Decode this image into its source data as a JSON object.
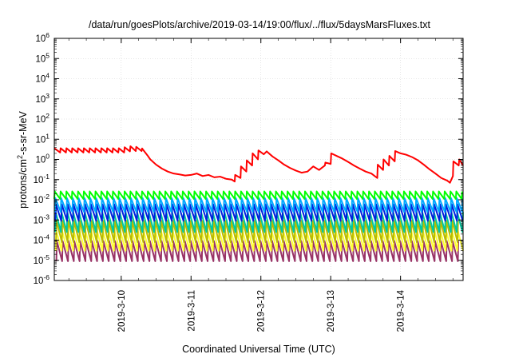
{
  "chart_data": {
    "type": "line",
    "title": "/data/run/goesPlots/archive/2019-03-14/19:00/flux/../flux/5daysMarsFluxes.txt",
    "xlabel": "Coordinated Universal Time (UTC)",
    "ylabel": {
      "base": "protons/cm",
      "sup": "2",
      "rest": "-s-sr-MeV"
    },
    "x_range": [
      "2019-03-09T01:00",
      "2019-03-14T21:30"
    ],
    "x_ticks": [
      {
        "at": "2019-03-10T00:00",
        "label": "2019-3-10"
      },
      {
        "at": "2019-03-11T00:00",
        "label": "2019-3-11"
      },
      {
        "at": "2019-03-12T00:00",
        "label": "2019-3-12"
      },
      {
        "at": "2019-03-13T00:00",
        "label": "2019-3-13"
      },
      {
        "at": "2019-03-14T00:00",
        "label": "2019-3-14"
      }
    ],
    "y_scale": "log",
    "ylim": [
      1e-06,
      1000000.0
    ],
    "y_ticks": [
      {
        "value": 1e-06,
        "base": "10",
        "exp": "-6"
      },
      {
        "value": 1e-05,
        "base": "10",
        "exp": "-5"
      },
      {
        "value": 0.0001,
        "base": "10",
        "exp": "-4"
      },
      {
        "value": 0.001,
        "base": "10",
        "exp": "-3"
      },
      {
        "value": 0.01,
        "base": "10",
        "exp": "-2"
      },
      {
        "value": 0.1,
        "base": "10",
        "exp": "-1"
      },
      {
        "value": 1,
        "base": "10",
        "exp": "0"
      },
      {
        "value": 10,
        "base": "10",
        "exp": "1"
      },
      {
        "value": 100,
        "base": "10",
        "exp": "2"
      },
      {
        "value": 1000,
        "base": "10",
        "exp": "3"
      },
      {
        "value": 10000,
        "base": "10",
        "exp": "4"
      },
      {
        "value": 100000,
        "base": "10",
        "exp": "5"
      },
      {
        "value": 1000000,
        "base": "10",
        "exp": "6"
      }
    ],
    "grid": true,
    "series": [
      {
        "color": "#ff0000",
        "x": [
          "2019-03-09T01:00",
          "2019-03-09T03:00",
          "2019-03-09T03:10",
          "2019-03-09T05:00",
          "2019-03-09T05:10",
          "2019-03-09T07:00",
          "2019-03-09T07:10",
          "2019-03-09T09:00",
          "2019-03-09T09:10",
          "2019-03-09T11:00",
          "2019-03-09T11:10",
          "2019-03-09T13:00",
          "2019-03-09T13:10",
          "2019-03-09T15:00",
          "2019-03-09T15:10",
          "2019-03-09T17:00",
          "2019-03-09T17:10",
          "2019-03-09T19:00",
          "2019-03-09T19:10",
          "2019-03-09T21:00",
          "2019-03-09T21:10",
          "2019-03-09T23:00",
          "2019-03-09T23:10",
          "2019-03-10T01:00",
          "2019-03-10T01:10",
          "2019-03-10T03:00",
          "2019-03-10T03:10",
          "2019-03-10T05:00",
          "2019-03-10T05:10",
          "2019-03-10T07:00",
          "2019-03-10T07:10",
          "2019-03-10T09:00",
          "2019-03-10T10:00",
          "2019-03-10T12:00",
          "2019-03-10T14:00",
          "2019-03-10T16:00",
          "2019-03-10T18:00",
          "2019-03-10T20:00",
          "2019-03-10T22:00",
          "2019-03-11T00:00",
          "2019-03-11T02:00",
          "2019-03-11T04:00",
          "2019-03-11T06:00",
          "2019-03-11T08:00",
          "2019-03-11T10:00",
          "2019-03-11T12:00",
          "2019-03-11T14:00",
          "2019-03-11T15:00",
          "2019-03-11T15:10",
          "2019-03-11T17:00",
          "2019-03-11T17:10",
          "2019-03-11T19:00",
          "2019-03-11T19:10",
          "2019-03-11T21:00",
          "2019-03-11T21:10",
          "2019-03-11T23:00",
          "2019-03-11T23:10",
          "2019-03-12T01:00",
          "2019-03-12T02:00",
          "2019-03-12T04:00",
          "2019-03-12T06:00",
          "2019-03-12T08:00",
          "2019-03-12T10:00",
          "2019-03-12T12:00",
          "2019-03-12T14:00",
          "2019-03-12T16:00",
          "2019-03-12T18:00",
          "2019-03-12T20:00",
          "2019-03-12T22:00",
          "2019-03-12T22:10",
          "2019-03-13T00:00",
          "2019-03-13T00:10",
          "2019-03-13T02:00",
          "2019-03-13T04:00",
          "2019-03-13T06:00",
          "2019-03-13T08:00",
          "2019-03-13T10:00",
          "2019-03-13T12:00",
          "2019-03-13T14:00",
          "2019-03-13T16:00",
          "2019-03-13T16:10",
          "2019-03-13T18:00",
          "2019-03-13T18:10",
          "2019-03-13T20:00",
          "2019-03-13T20:10",
          "2019-03-13T22:00",
          "2019-03-13T22:10",
          "2019-03-14T00:00",
          "2019-03-14T02:00",
          "2019-03-14T04:00",
          "2019-03-14T06:00",
          "2019-03-14T08:00",
          "2019-03-14T10:00",
          "2019-03-14T12:00",
          "2019-03-14T14:00",
          "2019-03-14T16:00",
          "2019-03-14T17:00",
          "2019-03-14T18:00",
          "2019-03-14T18:10",
          "2019-03-14T20:00",
          "2019-03-14T20:10",
          "2019-03-14T21:30"
        ],
        "values": [
          3.6,
          2.2,
          3.6,
          2.2,
          3.6,
          2.2,
          3.6,
          2.2,
          3.6,
          2.2,
          3.6,
          2.2,
          3.6,
          2.2,
          3.6,
          2.2,
          3.6,
          2.2,
          3.6,
          2.2,
          3.6,
          2.2,
          3.6,
          2.2,
          4.0,
          2.5,
          4.5,
          2.6,
          4.2,
          2.6,
          3.5,
          1.6,
          1.0,
          0.55,
          0.35,
          0.25,
          0.2,
          0.18,
          0.16,
          0.17,
          0.2,
          0.15,
          0.17,
          0.13,
          0.14,
          0.11,
          0.1,
          0.08,
          0.17,
          0.12,
          0.45,
          0.25,
          0.9,
          0.5,
          2.0,
          1.0,
          2.8,
          1.8,
          2.5,
          1.4,
          0.9,
          0.55,
          0.38,
          0.28,
          0.22,
          0.25,
          0.45,
          0.3,
          0.5,
          0.7,
          0.6,
          2.0,
          1.5,
          1.1,
          0.75,
          0.5,
          0.35,
          0.25,
          0.2,
          0.12,
          0.55,
          0.3,
          1.0,
          0.5,
          1.5,
          0.8,
          2.6,
          2.0,
          1.7,
          1.3,
          0.9,
          0.55,
          0.32,
          0.2,
          0.12,
          0.09,
          0.07,
          0.15,
          0.8,
          0.5,
          1.0,
          0.5
        ]
      },
      {
        "color": "#00ff00",
        "peak": 0.026,
        "trough": 0.011,
        "phase": 0.0
      },
      {
        "color": "#00aaff",
        "peak": 0.012,
        "trough": 0.0025,
        "phase": 0.1
      },
      {
        "color": "#0022dd",
        "peak": 0.006,
        "trough": 0.0009,
        "phase": 0.2
      },
      {
        "color": "#00c8a0",
        "peak": 0.0025,
        "trough": 0.00025,
        "phase": 0.15
      },
      {
        "color": "#bbbb00",
        "peak": 0.0009,
        "trough": 8e-05,
        "phase": 0.3
      },
      {
        "color": "#ffff33",
        "peak": 0.0003,
        "trough": 3e-05,
        "phase": 0.25
      },
      {
        "color": "#993366",
        "peak": 9e-05,
        "trough": 9e-06,
        "phase": 0.35
      }
    ],
    "oscillation_period_hours": 2
  }
}
